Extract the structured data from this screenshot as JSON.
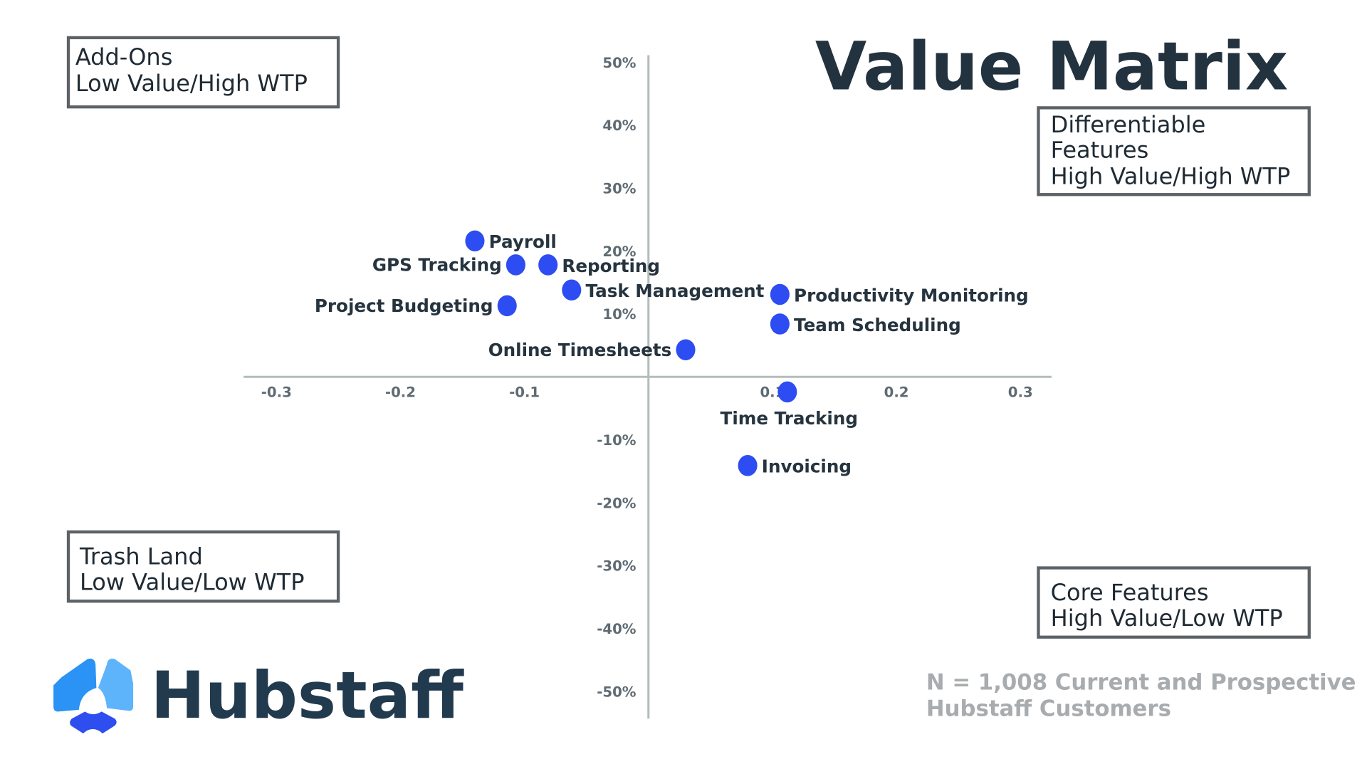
{
  "title": "Value Matrix",
  "quadrants": {
    "top_left": [
      "Add-Ons",
      "Low Value/High WTP"
    ],
    "top_right": [
      "Differentiable",
      "Features",
      "High Value/High WTP"
    ],
    "bottom_left": [
      "Trash Land",
      "Low Value/Low WTP"
    ],
    "bottom_right": [
      "Core Features",
      "High Value/Low WTP"
    ]
  },
  "note": [
    "N = 1,008 Current and Prospective",
    "Hubstaff Customers"
  ],
  "logo": {
    "text": "Hubstaff"
  },
  "colors": {
    "point": "#2d4cf2",
    "axis": "#b5bcbc",
    "text": "#22323f",
    "box_border": "#5c6266",
    "note": "#a8acaf"
  },
  "chart_data": {
    "type": "scatter",
    "title": "Value Matrix",
    "xlim": [
      -0.3,
      0.3
    ],
    "ylim": [
      -50,
      50
    ],
    "x_ticks": [
      "-0.3",
      "-0.2",
      "-0.1",
      "0.1",
      "0.2",
      "0.3"
    ],
    "x_tick_values": [
      -0.3,
      -0.2,
      -0.1,
      0.1,
      0.2,
      0.3
    ],
    "y_ticks": [
      "50%",
      "40%",
      "30%",
      "20%",
      "10%",
      "-10%",
      "-20%",
      "-30%",
      "-40%",
      "-50%"
    ],
    "y_tick_values": [
      50,
      40,
      30,
      20,
      10,
      -10,
      -20,
      -30,
      -40,
      -50
    ],
    "grid": false,
    "points": [
      {
        "label": "Payroll",
        "x": -0.14,
        "y": 21.6
      },
      {
        "label": "GPS Tracking",
        "x": -0.107,
        "y": 17.8
      },
      {
        "label": "Reporting",
        "x": -0.081,
        "y": 17.8
      },
      {
        "label": "Task Management",
        "x": -0.062,
        "y": 13.8
      },
      {
        "label": "Project Budgeting",
        "x": -0.114,
        "y": 11.3
      },
      {
        "label": "Online Timesheets",
        "x": 0.03,
        "y": 4.3
      },
      {
        "label": "Productivity Monitoring",
        "x": 0.106,
        "y": 13.1
      },
      {
        "label": "Team Scheduling",
        "x": 0.106,
        "y": 8.4
      },
      {
        "label": "Time Tracking",
        "x": 0.112,
        "y": -2.4
      },
      {
        "label": "Invoicing",
        "x": 0.08,
        "y": -14.1
      }
    ]
  }
}
